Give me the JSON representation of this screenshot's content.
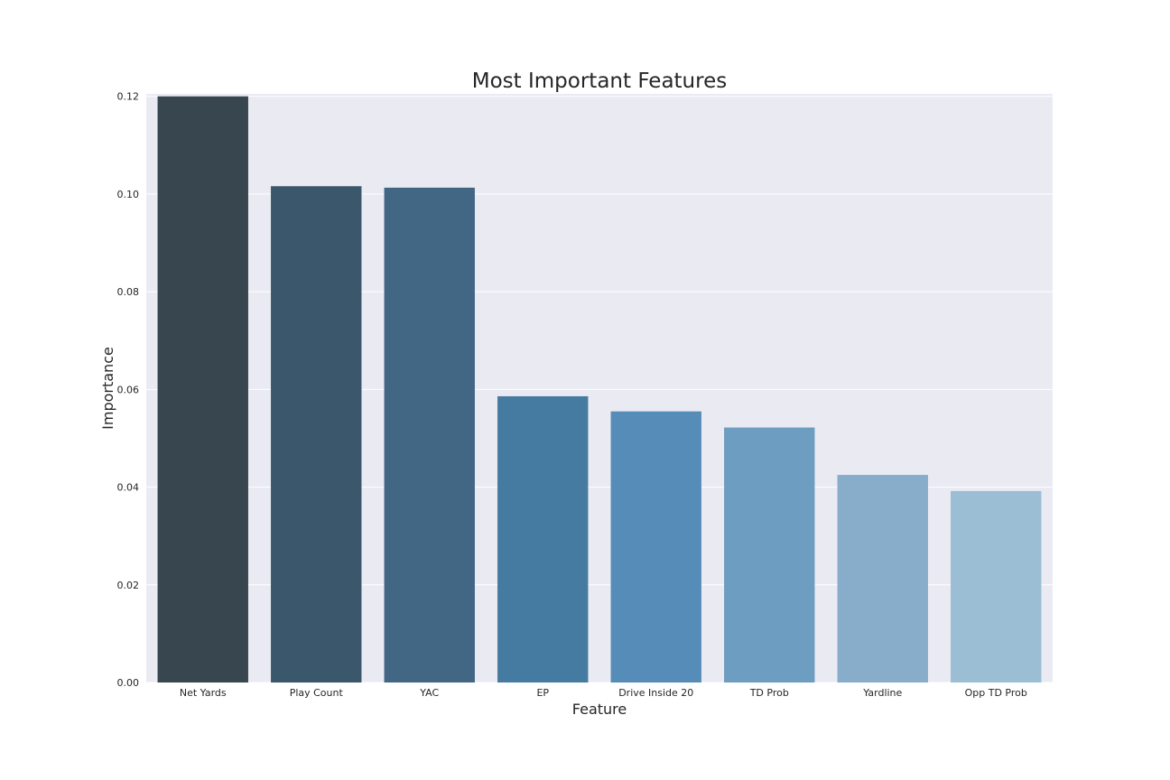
{
  "chart_data": {
    "type": "bar",
    "title": "Most Important Features",
    "xlabel": "Feature",
    "ylabel": "Importance",
    "categories": [
      "Net Yards",
      "Play Count",
      "YAC",
      "EP",
      "Drive Inside 20",
      "TD Prob",
      "Yardline",
      "Opp TD Prob"
    ],
    "values": [
      0.12,
      0.1016,
      0.1013,
      0.0586,
      0.0555,
      0.0522,
      0.0425,
      0.0392
    ],
    "ylim": [
      0.0,
      0.1205
    ],
    "yticks": [
      0.0,
      0.02,
      0.04,
      0.06,
      0.08,
      0.1,
      0.12
    ],
    "ytick_labels": [
      "0.00",
      "0.02",
      "0.04",
      "0.06",
      "0.08",
      "0.10",
      "0.12"
    ],
    "grid": true,
    "legend": "none",
    "bar_colors": [
      "#37464f",
      "#3b576c",
      "#426784",
      "#457aa1",
      "#568db8",
      "#6d9dc0",
      "#87adcb",
      "#9bbed5"
    ],
    "background_color": "#eaeaf2",
    "grid_color": "#ffffff"
  }
}
